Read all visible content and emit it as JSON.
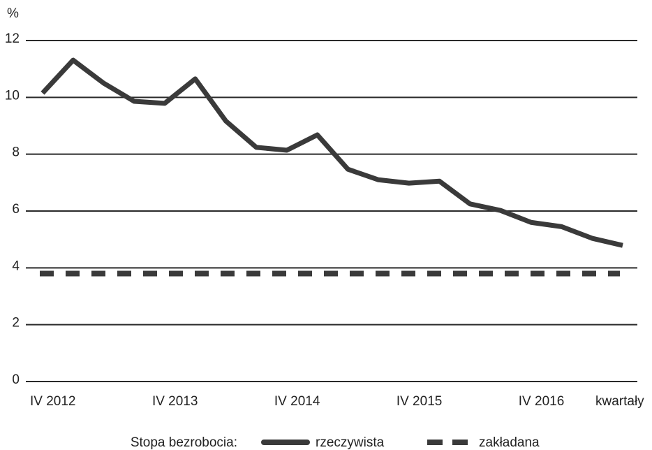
{
  "chart_data": {
    "type": "line",
    "y_label": "%",
    "x_label": "kwartały",
    "legend_title": "Stopa bezrobocia:",
    "categories": [
      "IV 2012",
      null,
      null,
      null,
      "IV 2013",
      null,
      null,
      null,
      "IV 2014",
      null,
      null,
      null,
      "IV 2015",
      null,
      null,
      null,
      "IV 2016",
      null,
      null,
      null
    ],
    "series": [
      {
        "name": "rzeczywista",
        "color": "#3a3a3a",
        "style": "solid",
        "values": [
          10.15,
          11.31,
          10.5,
          9.86,
          9.79,
          10.65,
          9.17,
          8.24,
          8.14,
          8.68,
          7.47,
          7.1,
          6.98,
          7.05,
          6.25,
          6.02,
          5.6,
          5.45,
          5.04,
          4.79
        ]
      },
      {
        "name": "zakładana",
        "color": "#3a3a3a",
        "style": "dashed",
        "values": [
          3.8,
          3.8,
          3.8,
          3.8,
          3.8,
          3.8,
          3.8,
          3.8,
          3.8,
          3.8,
          3.8,
          3.8,
          3.8,
          3.8,
          3.8,
          3.8,
          3.8,
          3.8,
          3.8,
          3.8
        ]
      }
    ],
    "ylim": [
      0,
      12
    ],
    "yticks": [
      0,
      2,
      4,
      6,
      8,
      10,
      12
    ],
    "grid": true
  }
}
